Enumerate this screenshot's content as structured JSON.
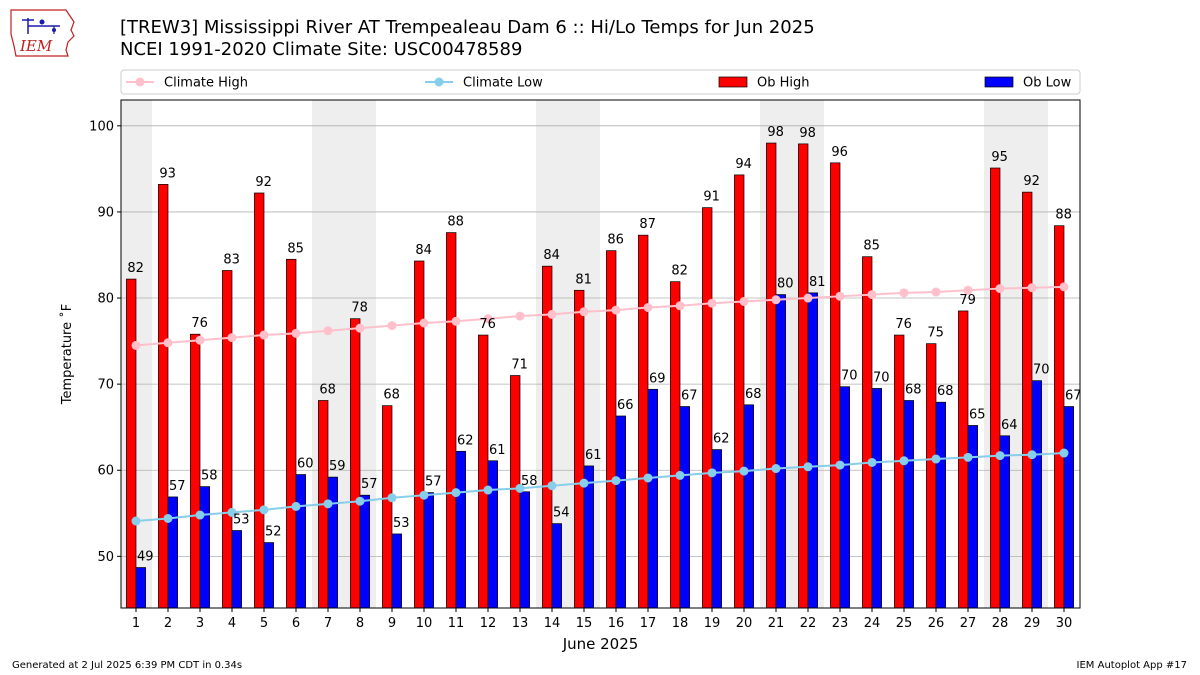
{
  "header": {
    "title_line1": "[TREW3] Mississippi River  AT Trempealeau Dam 6 :: Hi/Lo Temps for Jun 2025",
    "title_line2": "NCEI 1991-2020 Climate Site: USC00478589"
  },
  "logo": {
    "text": "IEM",
    "icon": "iowa-state-outline-logo"
  },
  "footer": {
    "generated": "Generated at 2 Jul 2025 6:39 PM CDT in 0.34s",
    "app": "IEM Autoplot App #17"
  },
  "colors": {
    "ob_high": "#ff0000",
    "ob_low": "#0000ff",
    "climate_high": "#ffc0cb",
    "climate_low": "#87ceeb",
    "weekend_band": "#eeeeee",
    "grid": "#b0b0b0"
  },
  "chart_data": {
    "type": "bar",
    "title": "[TREW3] Mississippi River  AT Trempealeau Dam 6 :: Hi/Lo Temps for Jun 2025",
    "subtitle": "NCEI 1991-2020 Climate Site: USC00478589",
    "xlabel": "June 2025",
    "ylabel": "Temperature ˚F",
    "categories": [
      "1",
      "2",
      "3",
      "4",
      "5",
      "6",
      "7",
      "8",
      "9",
      "10",
      "11",
      "12",
      "13",
      "14",
      "15",
      "16",
      "17",
      "18",
      "19",
      "20",
      "21",
      "22",
      "23",
      "24",
      "25",
      "26",
      "27",
      "28",
      "29",
      "30"
    ],
    "ylim": [
      44,
      103
    ],
    "yticks": [
      50,
      60,
      70,
      80,
      90,
      100
    ],
    "grid": "horizontal",
    "legend_placement": "top",
    "weekend_days": [
      1,
      7,
      8,
      14,
      15,
      21,
      22,
      28,
      29
    ],
    "series": [
      {
        "name": "Ob High",
        "kind": "bar",
        "labels": true,
        "values": [
          82.2,
          93.2,
          75.8,
          83.2,
          92.2,
          84.5,
          68.1,
          77.6,
          67.5,
          84.3,
          87.6,
          75.7,
          71.0,
          83.7,
          80.9,
          85.5,
          87.3,
          81.9,
          90.5,
          94.3,
          98.0,
          97.9,
          95.7,
          84.8,
          75.7,
          74.7,
          78.5,
          95.1,
          92.3,
          88.4
        ]
      },
      {
        "name": "Ob Low",
        "kind": "bar",
        "labels": true,
        "values": [
          48.7,
          56.9,
          58.1,
          53.0,
          51.6,
          59.5,
          59.2,
          57.1,
          52.6,
          57.4,
          62.2,
          61.1,
          57.5,
          53.8,
          60.5,
          66.3,
          69.4,
          67.4,
          62.4,
          67.6,
          80.4,
          80.6,
          69.7,
          69.5,
          68.1,
          67.9,
          65.2,
          64.0,
          70.4,
          67.4
        ]
      },
      {
        "name": "Climate High",
        "kind": "line",
        "values": [
          74.5,
          74.8,
          75.1,
          75.4,
          75.7,
          75.9,
          76.2,
          76.5,
          76.8,
          77.1,
          77.3,
          77.6,
          77.9,
          78.1,
          78.4,
          78.6,
          78.9,
          79.1,
          79.4,
          79.6,
          79.8,
          80.0,
          80.2,
          80.4,
          80.6,
          80.7,
          80.9,
          81.1,
          81.2,
          81.3
        ]
      },
      {
        "name": "Climate Low",
        "kind": "line",
        "values": [
          54.1,
          54.4,
          54.8,
          55.1,
          55.4,
          55.8,
          56.1,
          56.4,
          56.8,
          57.1,
          57.4,
          57.7,
          57.9,
          58.2,
          58.5,
          58.8,
          59.1,
          59.4,
          59.7,
          59.9,
          60.2,
          60.4,
          60.6,
          60.9,
          61.1,
          61.3,
          61.5,
          61.7,
          61.8,
          62.0
        ]
      }
    ]
  }
}
